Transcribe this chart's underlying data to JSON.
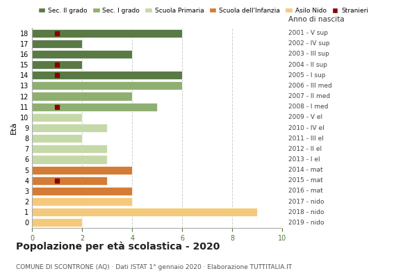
{
  "ages": [
    18,
    17,
    16,
    15,
    14,
    13,
    12,
    11,
    10,
    9,
    8,
    7,
    6,
    5,
    4,
    3,
    2,
    1,
    0
  ],
  "right_labels": [
    "2001 - V sup",
    "2002 - IV sup",
    "2003 - III sup",
    "2004 - II sup",
    "2005 - I sup",
    "2006 - III med",
    "2007 - II med",
    "2008 - I med",
    "2009 - V el",
    "2010 - IV el",
    "2011 - III el",
    "2012 - II el",
    "2013 - I el",
    "2014 - mat",
    "2015 - mat",
    "2016 - mat",
    "2017 - nido",
    "2018 - nido",
    "2019 - nido"
  ],
  "bar_values": [
    6,
    2,
    4,
    2,
    6,
    6,
    4,
    5,
    2,
    3,
    2,
    3,
    3,
    4,
    3,
    4,
    4,
    9,
    2
  ],
  "bar_colors": [
    "#5a7a45",
    "#5a7a45",
    "#5a7a45",
    "#5a7a45",
    "#5a7a45",
    "#8faf72",
    "#8faf72",
    "#8faf72",
    "#c5d9a8",
    "#c5d9a8",
    "#c5d9a8",
    "#c5d9a8",
    "#c5d9a8",
    "#d47c35",
    "#d47c35",
    "#d47c35",
    "#f5c97a",
    "#f5c97a",
    "#f5c97a"
  ],
  "stranieri_ages": [
    18,
    15,
    14,
    11,
    4
  ],
  "stranieri_values": [
    1,
    1,
    1,
    1,
    1
  ],
  "stranieri_color": "#8b0000",
  "legend_labels": [
    "Sec. II grado",
    "Sec. I grado",
    "Scuola Primaria",
    "Scuola dell'Infanzia",
    "Asilo Nido",
    "Stranieri"
  ],
  "legend_colors": [
    "#5a7a45",
    "#8faf72",
    "#c5d9a8",
    "#d47c35",
    "#f5c97a",
    "#8b0000"
  ],
  "title": "Popolazione per età scolastica - 2020",
  "subtitle": "COMUNE DI SCONTRONE (AQ) · Dati ISTAT 1° gennaio 2020 · Elaborazione TUTTITALIA.IT",
  "xlabel_eta": "Età",
  "xlabel_anno": "Anno di nascita",
  "xlim": [
    0,
    10
  ],
  "xticks": [
    0,
    2,
    4,
    6,
    8,
    10
  ],
  "background_color": "#ffffff"
}
